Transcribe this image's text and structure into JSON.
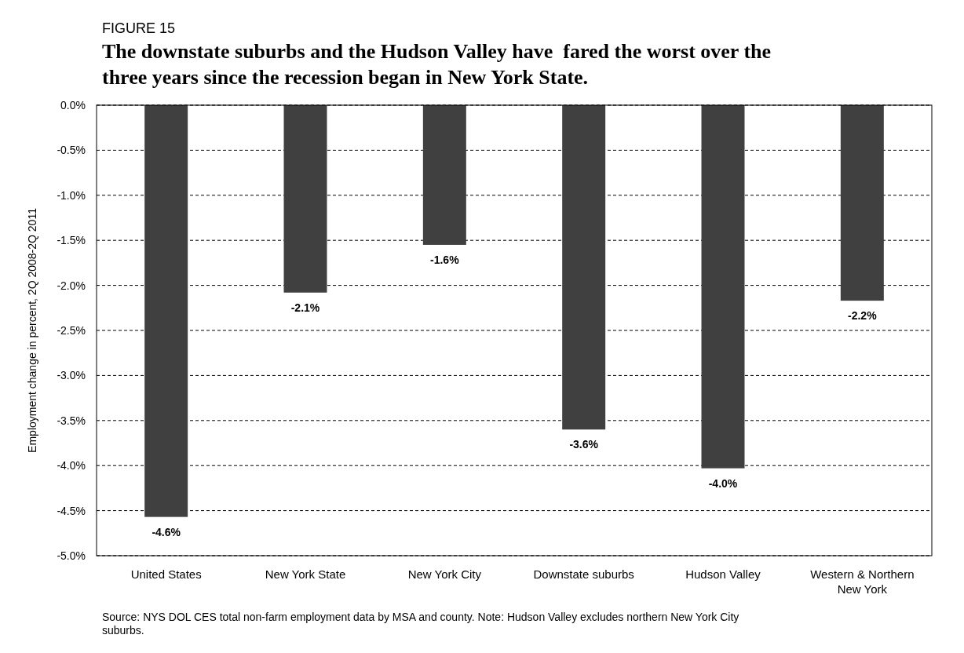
{
  "chart_data": {
    "type": "bar",
    "subtitle": "FIGURE 15",
    "title": "The downstate suburbs and the Hudson Valley have  fared the worst over the three years since the recession began in New York State.",
    "ylabel": "Employment change in percent, 2Q 2008-2Q 2011",
    "categories": [
      "United States",
      "New York State",
      "New York City",
      "Downstate suburbs",
      "Hudson Valley",
      "Western & Northern New York"
    ],
    "values": [
      -4.57,
      -2.08,
      -1.55,
      -3.6,
      -4.03,
      -2.17
    ],
    "value_labels": [
      "-4.6%",
      "-2.1%",
      "-1.6%",
      "-3.6%",
      "-4.0%",
      "-2.2%"
    ],
    "color": "#404040",
    "ylim": [
      -5,
      0
    ],
    "yticks": [
      {
        "value": 0,
        "label": "0.0%"
      },
      {
        "value": -0.5,
        "label": "-0.5%"
      },
      {
        "value": -1,
        "label": "-1.0%"
      },
      {
        "value": -1.5,
        "label": "-1.5%"
      },
      {
        "value": -2,
        "label": "-2.0%"
      },
      {
        "value": -2.5,
        "label": "-2.5%"
      },
      {
        "value": -3,
        "label": "-3.0%"
      },
      {
        "value": -3.5,
        "label": "-3.5%"
      },
      {
        "value": -4,
        "label": "-4.0%"
      },
      {
        "value": -4.5,
        "label": "-4.5%"
      },
      {
        "value": -5,
        "label": "-5.0%"
      }
    ],
    "grid": "y",
    "annotations": [
      "Source: NYS DOL CES total non-farm employment data by MSA and county. Note: Hudson Valley excludes northern New York City suburbs."
    ]
  }
}
